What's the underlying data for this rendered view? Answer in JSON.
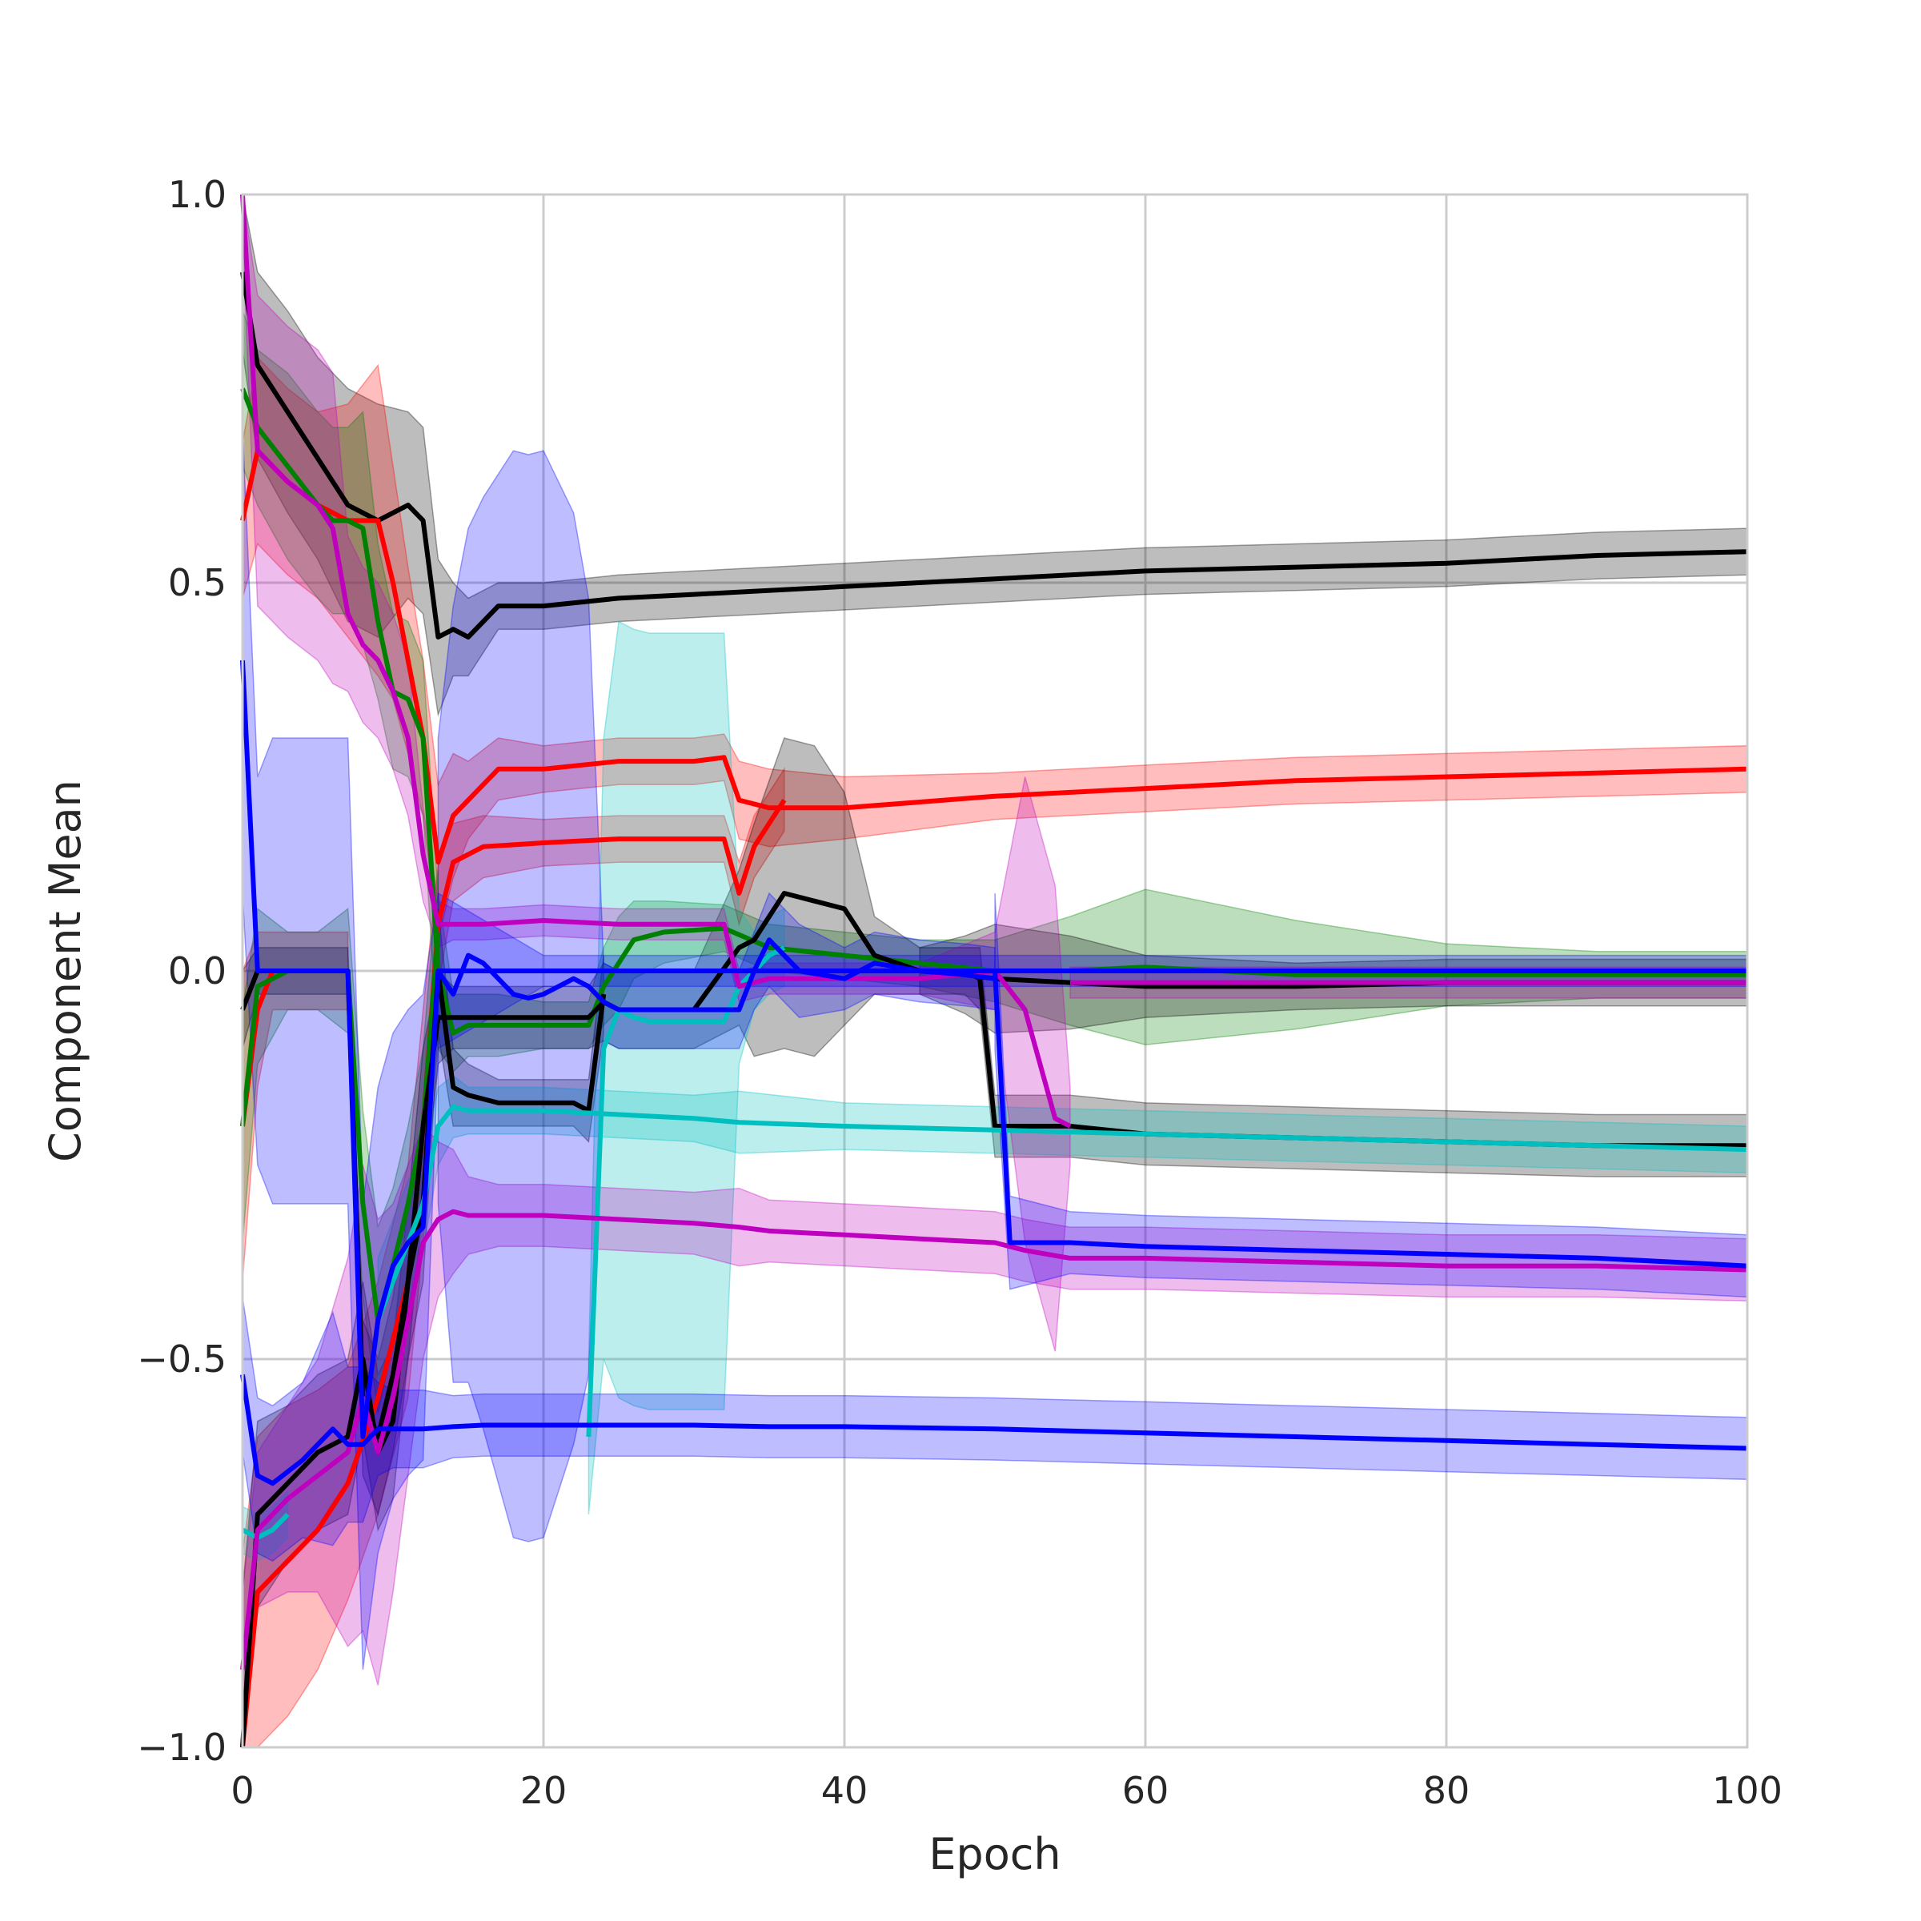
{
  "chart_data": {
    "type": "line",
    "title": "",
    "xlabel": "Epoch",
    "ylabel": "Component Mean",
    "xlim": [
      0,
      100
    ],
    "ylim": [
      -1.0,
      1.0
    ],
    "xticks": [
      0,
      20,
      40,
      60,
      80,
      100
    ],
    "xtick_labels": [
      "0",
      "20",
      "40",
      "60",
      "80",
      "100"
    ],
    "yticks": [
      -1.0,
      -0.5,
      0.0,
      0.5,
      1.0
    ],
    "ytick_labels": [
      "−1.0",
      "−0.5",
      "0.0",
      "0.5",
      "1.0"
    ],
    "grid": true,
    "legend": "none",
    "series": [
      {
        "color": "#000000",
        "x": [
          0,
          1,
          3,
          5,
          7,
          9,
          11,
          12,
          13,
          14,
          15,
          16,
          17,
          20,
          25,
          30,
          40,
          50,
          60,
          70,
          80,
          90,
          100
        ],
        "y": [
          0.9,
          0.78,
          0.72,
          0.66,
          0.6,
          0.58,
          0.6,
          0.58,
          0.43,
          0.44,
          0.43,
          0.45,
          0.47,
          0.47,
          0.48,
          0.485,
          0.495,
          0.505,
          0.515,
          0.52,
          0.525,
          0.535,
          0.54
        ],
        "band": [
          0.1,
          0.12,
          0.13,
          0.13,
          0.15,
          0.15,
          0.12,
          0.12,
          0.1,
          0.06,
          0.05,
          0.04,
          0.03,
          0.03,
          0.03,
          0.03,
          0.03,
          0.03,
          0.03,
          0.03,
          0.03,
          0.03,
          0.03
        ]
      },
      {
        "color": "#ff0000",
        "x": [
          0,
          1,
          3,
          5,
          7,
          9,
          10,
          11,
          12,
          13,
          14,
          15,
          17,
          20,
          25,
          30,
          32,
          33,
          35,
          40,
          50,
          60,
          70,
          80,
          90,
          100
        ],
        "y": [
          0.58,
          0.67,
          0.63,
          0.6,
          0.58,
          0.58,
          0.5,
          0.4,
          0.3,
          0.14,
          0.2,
          0.22,
          0.26,
          0.26,
          0.27,
          0.27,
          0.275,
          0.22,
          0.21,
          0.21,
          0.225,
          0.235,
          0.245,
          0.25,
          0.255,
          0.26
        ],
        "band": [
          0.1,
          0.12,
          0.12,
          0.12,
          0.15,
          0.2,
          0.15,
          0.12,
          0.1,
          0.1,
          0.08,
          0.05,
          0.04,
          0.03,
          0.03,
          0.03,
          0.03,
          0.05,
          0.05,
          0.04,
          0.03,
          0.03,
          0.03,
          0.03,
          0.03,
          0.03
        ]
      },
      {
        "color": "#ff0000",
        "x": [
          0,
          1,
          3,
          5,
          7,
          9,
          11,
          12,
          13,
          14,
          16,
          20,
          25,
          30,
          32,
          33,
          34,
          36
        ],
        "y": [
          -1.0,
          -0.8,
          -0.76,
          -0.72,
          -0.66,
          -0.55,
          -0.4,
          -0.2,
          0.06,
          0.14,
          0.16,
          0.165,
          0.17,
          0.17,
          0.17,
          0.1,
          0.16,
          0.22
        ],
        "band": [
          0.25,
          0.2,
          0.2,
          0.18,
          0.15,
          0.15,
          0.15,
          0.15,
          0.08,
          0.05,
          0.04,
          0.03,
          0.03,
          0.03,
          0.03,
          0.04,
          0.04,
          0.04
        ]
      },
      {
        "color": "#ff0000",
        "x": [
          0,
          1,
          2,
          4,
          6,
          7
        ],
        "y": [
          -0.2,
          -0.05,
          0.0,
          0.0,
          0.0,
          0.0
        ],
        "band": [
          0.2,
          0.1,
          0.05,
          0.05,
          0.05,
          0.05
        ]
      },
      {
        "color": "#008000",
        "x": [
          0,
          1,
          3,
          5,
          6,
          7,
          8,
          9,
          10,
          11,
          12,
          13,
          14,
          15,
          17,
          20,
          23,
          24,
          25,
          26,
          28,
          32,
          35,
          40,
          45,
          50,
          55,
          60,
          70,
          80,
          90,
          100
        ],
        "y": [
          0.75,
          0.7,
          0.65,
          0.6,
          0.58,
          0.58,
          0.57,
          0.45,
          0.36,
          0.35,
          0.3,
          0.0,
          -0.08,
          -0.07,
          -0.07,
          -0.07,
          -0.07,
          -0.02,
          0.01,
          0.04,
          0.05,
          0.055,
          0.03,
          0.02,
          0.01,
          0.0,
          0.0,
          0.005,
          -0.005,
          -0.005,
          -0.005,
          -0.005
        ],
        "band": [
          0.1,
          0.1,
          0.12,
          0.12,
          0.12,
          0.12,
          0.15,
          0.1,
          0.1,
          0.1,
          0.1,
          0.1,
          0.05,
          0.04,
          0.04,
          0.03,
          0.03,
          0.05,
          0.06,
          0.05,
          0.04,
          0.03,
          0.03,
          0.03,
          0.03,
          0.04,
          0.07,
          0.1,
          0.07,
          0.04,
          0.03,
          0.03
        ]
      },
      {
        "color": "#008000",
        "x": [
          0,
          1,
          3,
          5,
          7,
          8,
          9,
          10,
          11,
          12,
          13
        ],
        "y": [
          -0.2,
          -0.02,
          0.0,
          0.0,
          0.0,
          -0.3,
          -0.45,
          -0.38,
          -0.3,
          -0.2,
          0.05
        ],
        "band": [
          0.15,
          0.1,
          0.05,
          0.05,
          0.08,
          0.12,
          0.12,
          0.1,
          0.1,
          0.1,
          0.08
        ]
      },
      {
        "color": "#000000",
        "x": [
          0,
          1,
          3,
          5,
          7,
          8,
          9,
          10,
          11,
          12,
          13,
          14,
          16,
          18,
          20,
          23,
          24,
          25,
          26,
          30,
          33,
          34,
          36,
          38,
          40,
          42,
          45,
          48,
          50,
          55,
          60,
          70,
          80,
          90,
          100
        ],
        "y": [
          -0.05,
          0.0,
          0.0,
          0.0,
          0.0,
          -0.55,
          -0.6,
          -0.52,
          -0.4,
          -0.2,
          -0.06,
          -0.06,
          -0.06,
          -0.06,
          -0.06,
          -0.06,
          -0.04,
          -0.05,
          -0.05,
          -0.05,
          0.03,
          0.04,
          0.1,
          0.09,
          0.08,
          0.02,
          0.0,
          -0.005,
          -0.01,
          -0.015,
          -0.02,
          -0.02,
          -0.015,
          -0.015,
          -0.015
        ],
        "band": [
          0.05,
          0.03,
          0.03,
          0.03,
          0.03,
          0.1,
          0.1,
          0.1,
          0.1,
          0.1,
          0.06,
          0.04,
          0.04,
          0.04,
          0.04,
          0.04,
          0.05,
          0.05,
          0.05,
          0.05,
          0.1,
          0.15,
          0.2,
          0.2,
          0.15,
          0.05,
          0.03,
          0.05,
          0.07,
          0.06,
          0.04,
          0.03,
          0.03,
          0.03,
          0.03
        ]
      },
      {
        "color": "#000000",
        "x": [
          0,
          1,
          3,
          5,
          7,
          8,
          9,
          10,
          11,
          12,
          13,
          14,
          15,
          17,
          20,
          22,
          23,
          24
        ],
        "y": [
          -1.0,
          -0.7,
          -0.66,
          -0.62,
          -0.6,
          -0.5,
          -0.62,
          -0.58,
          -0.4,
          -0.3,
          0.0,
          -0.15,
          -0.16,
          -0.17,
          -0.17,
          -0.17,
          -0.18,
          -0.03
        ],
        "band": [
          0.2,
          0.12,
          0.1,
          0.1,
          0.1,
          0.1,
          0.1,
          0.1,
          0.1,
          0.1,
          0.08,
          0.05,
          0.04,
          0.03,
          0.03,
          0.03,
          0.04,
          0.05
        ]
      },
      {
        "color": "#000000",
        "x": [
          45,
          48,
          49,
          50,
          51,
          55,
          60,
          70,
          80,
          90,
          100
        ],
        "y": [
          0.0,
          0.0,
          -0.01,
          -0.2,
          -0.2,
          -0.2,
          -0.21,
          -0.215,
          -0.22,
          -0.225,
          -0.225
        ],
        "band": [
          0.03,
          0.03,
          0.04,
          0.04,
          0.04,
          0.04,
          0.04,
          0.04,
          0.04,
          0.04,
          0.04
        ]
      },
      {
        "color": "#00bfbf",
        "x": [
          0,
          1,
          2,
          3
        ],
        "y": [
          -0.72,
          -0.73,
          -0.72,
          -0.7
        ],
        "band": [
          0.03,
          0.03,
          0.03,
          0.03
        ]
      },
      {
        "color": "#00bfbf",
        "x": [
          9,
          10,
          11,
          12,
          13,
          14,
          15,
          17,
          20,
          25,
          30,
          33,
          40,
          50,
          60,
          70,
          80,
          90,
          100
        ],
        "y": [
          -0.45,
          -0.4,
          -0.35,
          -0.3,
          -0.2,
          -0.175,
          -0.18,
          -0.18,
          -0.18,
          -0.185,
          -0.19,
          -0.195,
          -0.2,
          -0.205,
          -0.21,
          -0.215,
          -0.22,
          -0.225,
          -0.23
        ],
        "band": [
          0.08,
          0.08,
          0.08,
          0.06,
          0.05,
          0.04,
          0.03,
          0.03,
          0.03,
          0.03,
          0.03,
          0.04,
          0.03,
          0.03,
          0.03,
          0.03,
          0.03,
          0.03,
          0.03
        ]
      },
      {
        "color": "#00bfbf",
        "x": [
          23,
          24,
          25,
          26,
          27,
          30,
          32,
          33,
          34,
          35,
          36
        ],
        "y": [
          -0.6,
          -0.1,
          -0.05,
          -0.06,
          -0.065,
          -0.065,
          -0.065,
          -0.02,
          0.0,
          0.02,
          0.03
        ],
        "band": [
          0.1,
          0.4,
          0.5,
          0.5,
          0.5,
          0.5,
          0.5,
          0.1,
          0.05,
          0.05,
          0.05
        ]
      },
      {
        "color": "#bf00bf",
        "x": [
          0,
          1,
          3,
          5,
          6,
          7,
          8,
          9,
          10,
          11,
          12,
          13,
          14,
          16,
          20,
          25,
          30,
          32,
          33,
          35,
          40,
          45,
          50,
          52,
          53,
          54,
          55
        ],
        "y": [
          1.0,
          0.67,
          0.63,
          0.6,
          0.57,
          0.46,
          0.42,
          0.4,
          0.36,
          0.3,
          0.15,
          0.06,
          0.06,
          0.06,
          0.065,
          0.06,
          0.06,
          0.06,
          -0.02,
          -0.01,
          -0.01,
          -0.01,
          0.0,
          -0.05,
          -0.12,
          -0.19,
          -0.2
        ],
        "band": [
          0.05,
          0.2,
          0.2,
          0.2,
          0.2,
          0.1,
          0.1,
          0.1,
          0.1,
          0.1,
          0.06,
          0.03,
          0.02,
          0.02,
          0.02,
          0.02,
          0.02,
          0.02,
          0.02,
          0.02,
          0.02,
          0.02,
          0.05,
          0.3,
          0.3,
          0.3,
          0.05
        ]
      },
      {
        "color": "#bf00bf",
        "x": [
          0,
          1,
          3,
          5,
          7,
          8,
          9,
          10,
          11,
          12,
          13,
          14,
          15,
          17,
          20,
          25,
          30,
          33,
          35,
          40,
          45,
          50,
          52,
          55,
          60,
          70,
          80,
          90,
          100
        ],
        "y": [
          -0.9,
          -0.72,
          -0.68,
          -0.65,
          -0.62,
          -0.55,
          -0.62,
          -0.55,
          -0.45,
          -0.35,
          -0.32,
          -0.31,
          -0.315,
          -0.315,
          -0.315,
          -0.32,
          -0.325,
          -0.33,
          -0.335,
          -0.34,
          -0.345,
          -0.35,
          -0.36,
          -0.37,
          -0.37,
          -0.375,
          -0.38,
          -0.38,
          -0.385
        ],
        "band": [
          0.1,
          0.1,
          0.12,
          0.15,
          0.25,
          0.3,
          0.3,
          0.25,
          0.2,
          0.15,
          0.1,
          0.08,
          0.05,
          0.04,
          0.04,
          0.04,
          0.04,
          0.05,
          0.04,
          0.04,
          0.04,
          0.04,
          0.04,
          0.04,
          0.04,
          0.04,
          0.04,
          0.04,
          0.04
        ]
      },
      {
        "color": "#bf00bf",
        "x": [
          55,
          60,
          70,
          80,
          90,
          100
        ],
        "y": [
          -0.015,
          -0.015,
          -0.015,
          -0.015,
          -0.015,
          -0.015
        ],
        "band": [
          0.02,
          0.02,
          0.02,
          0.02,
          0.02,
          0.02
        ]
      },
      {
        "color": "#0000ff",
        "x": [
          0,
          1,
          2,
          3,
          5,
          7,
          8,
          9,
          10,
          11,
          12,
          13,
          20,
          30,
          40,
          50,
          60,
          70,
          80,
          90,
          100
        ],
        "y": [
          0.4,
          0.0,
          0.0,
          0.0,
          0.0,
          0.0,
          -0.6,
          -0.45,
          -0.38,
          -0.35,
          -0.33,
          0.0,
          0.0,
          0.0,
          0.0,
          0.0,
          0.0,
          0.0,
          0.0,
          0.0,
          0.0
        ],
        "band": [
          0.3,
          0.25,
          0.3,
          0.3,
          0.3,
          0.3,
          0.3,
          0.3,
          0.3,
          0.3,
          0.3,
          0.1,
          0.02,
          0.02,
          0.02,
          0.02,
          0.02,
          0.02,
          0.02,
          0.02,
          0.02
        ]
      },
      {
        "color": "#0000ff",
        "x": [
          0,
          1,
          2,
          4,
          6,
          7,
          8,
          9,
          10,
          12,
          14,
          16,
          20,
          25,
          30,
          35,
          40,
          50,
          60,
          70,
          80,
          90,
          100
        ],
        "y": [
          -0.52,
          -0.65,
          -0.66,
          -0.63,
          -0.59,
          -0.61,
          -0.61,
          -0.59,
          -0.59,
          -0.59,
          -0.587,
          -0.585,
          -0.585,
          -0.585,
          -0.585,
          -0.587,
          -0.587,
          -0.59,
          -0.595,
          -0.6,
          -0.605,
          -0.61,
          -0.615
        ],
        "band": [
          0.1,
          0.1,
          0.1,
          0.1,
          0.15,
          0.1,
          0.1,
          0.06,
          0.05,
          0.05,
          0.04,
          0.04,
          0.04,
          0.04,
          0.04,
          0.04,
          0.04,
          0.04,
          0.04,
          0.04,
          0.04,
          0.04,
          0.04
        ]
      },
      {
        "color": "#0000ff",
        "x": [
          13,
          14,
          15,
          16,
          17,
          18,
          19,
          20,
          21,
          22,
          23,
          24,
          25,
          26,
          30,
          32,
          33,
          34,
          35,
          36,
          37,
          40,
          42,
          45,
          48,
          50
        ],
        "y": [
          0.0,
          -0.03,
          0.02,
          0.01,
          -0.01,
          -0.03,
          -0.035,
          -0.03,
          -0.02,
          -0.01,
          -0.02,
          -0.04,
          -0.05,
          -0.05,
          -0.05,
          -0.05,
          -0.05,
          0.0,
          0.04,
          0.02,
          0.0,
          -0.01,
          0.01,
          0.0,
          -0.005,
          -0.01
        ],
        "band": [
          0.3,
          0.5,
          0.55,
          0.6,
          0.65,
          0.7,
          0.7,
          0.7,
          0.65,
          0.6,
          0.5,
          0.05,
          0.05,
          0.05,
          0.05,
          0.05,
          0.05,
          0.05,
          0.06,
          0.06,
          0.06,
          0.04,
          0.04,
          0.04,
          0.04,
          0.04
        ]
      },
      {
        "color": "#0000ff",
        "x": [
          50,
          51,
          55,
          60,
          70,
          80,
          90,
          100
        ],
        "y": [
          -0.0,
          -0.35,
          -0.35,
          -0.355,
          -0.36,
          -0.365,
          -0.37,
          -0.38
        ],
        "band": [
          0.1,
          0.06,
          0.04,
          0.04,
          0.04,
          0.04,
          0.04,
          0.04
        ]
      }
    ]
  }
}
